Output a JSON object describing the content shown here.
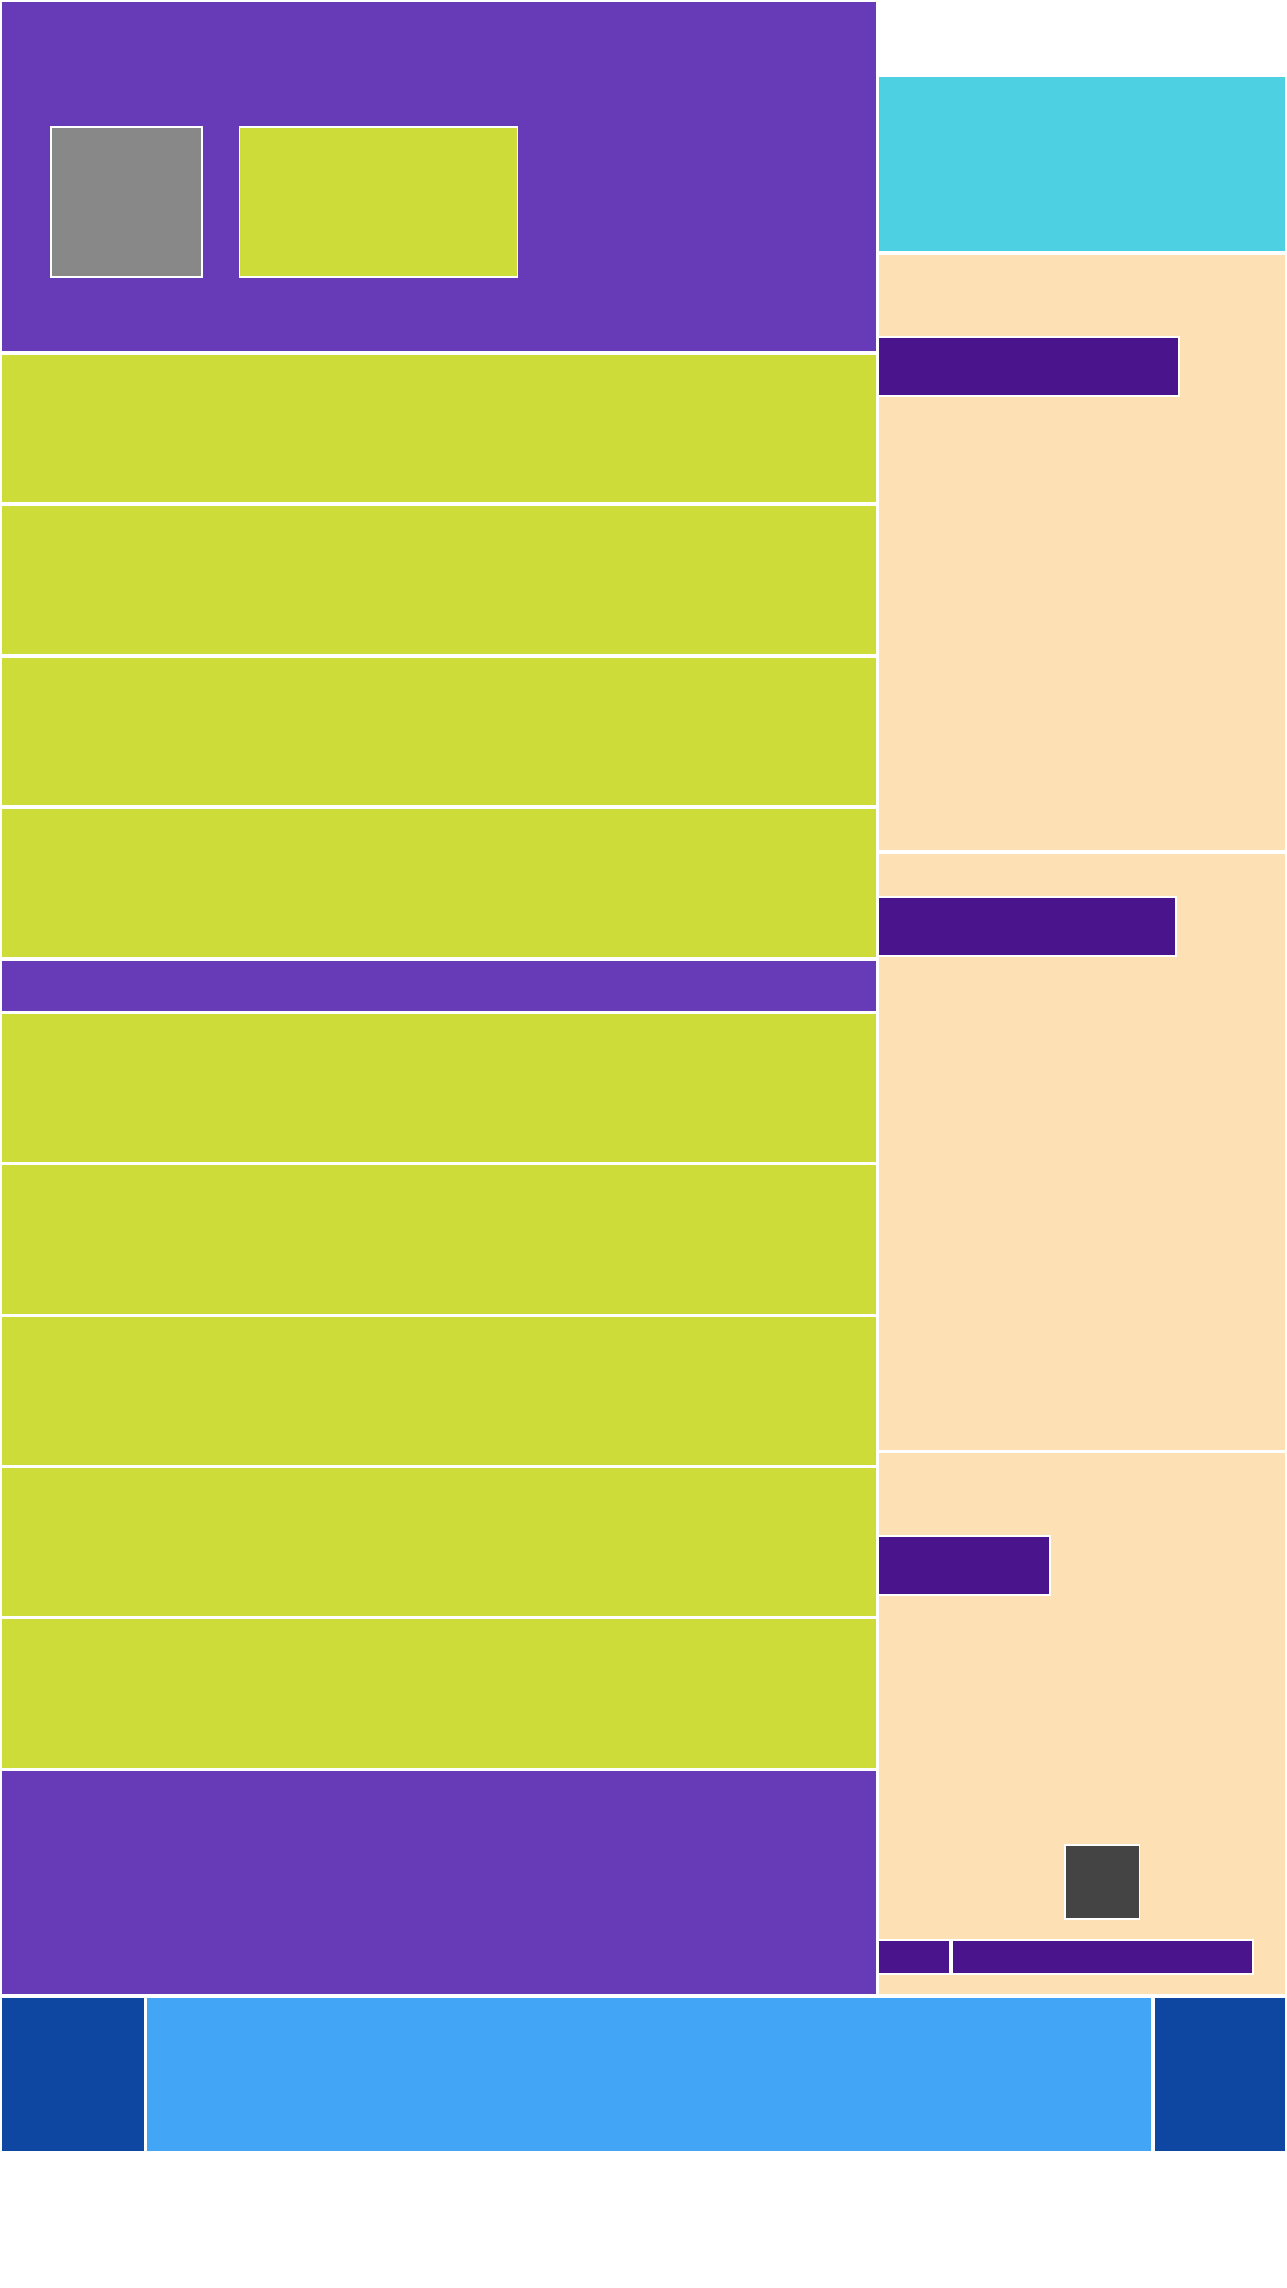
{
  "palette": {
    "header": "#673ab7",
    "row": "#cddc39",
    "sidebar_top": "#4dd0e1",
    "sidebar_panel": "#fde0b3",
    "sidebar_bar": "#4a148c",
    "thumbnail": "#888888",
    "small_square": "#444444",
    "footer_side": "#0d47a1",
    "footer_center": "#42a5f5"
  },
  "content": {}
}
